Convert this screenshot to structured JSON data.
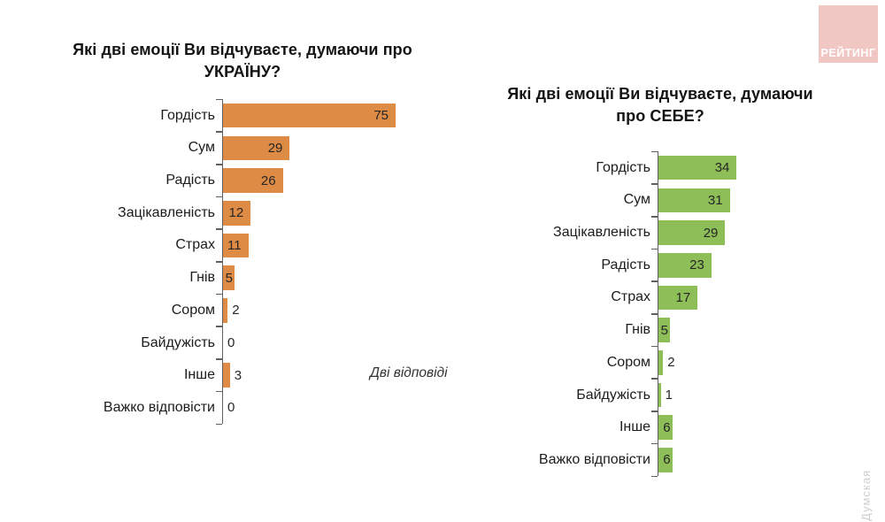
{
  "page": {
    "background": "#ffffff"
  },
  "logo": {
    "label": "РЕЙТИНГ",
    "bg_color": "#F1C7C3",
    "text_color": "#FFFFFF"
  },
  "watermark": {
    "text": "Думская"
  },
  "annotation": {
    "text": "Дві відповіді"
  },
  "chart_data": [
    {
      "type": "bar",
      "orientation": "horizontal",
      "title": "Які дві емоції Ви відчуваєте, думаючи про УКРАЇНУ?",
      "categories": [
        "Гордість",
        "Сум",
        "Радість",
        "Зацікавленість",
        "Страх",
        "Гнів",
        "Сором",
        "Байдужість",
        "Інше",
        "Важко відповісти"
      ],
      "values": [
        75,
        29,
        26,
        12,
        11,
        5,
        2,
        0,
        3,
        0
      ],
      "bar_color": "#DE8B45",
      "value_labels": "at bar end",
      "note": "Дві відповіді",
      "legend": "none",
      "grid": "off"
    },
    {
      "type": "bar",
      "orientation": "horizontal",
      "title": "Які дві емоції Ви відчуваєте, думаючи про СЕБЕ?",
      "categories": [
        "Гордість",
        "Сум",
        "Зацікавленість",
        "Радість",
        "Страх",
        "Гнів",
        "Сором",
        "Байдужість",
        "Інше",
        "Важко відповісти"
      ],
      "values": [
        34,
        31,
        29,
        23,
        17,
        5,
        2,
        1,
        6,
        6
      ],
      "bar_color": "#8DBE58",
      "value_labels": "at bar end",
      "legend": "none",
      "grid": "off"
    }
  ]
}
